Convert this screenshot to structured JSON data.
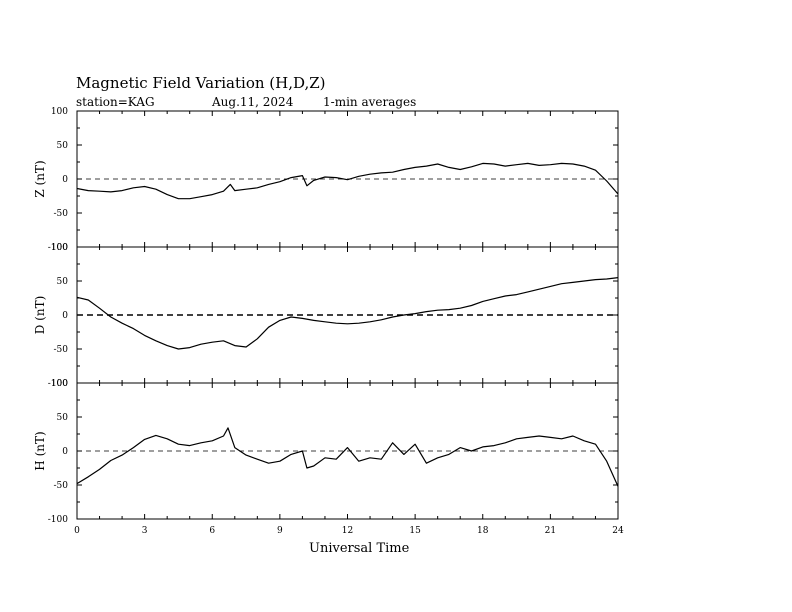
{
  "header": {
    "title": "Magnetic Field Variation (H,D,Z)",
    "station": "station=KAG",
    "date": "Aug.11, 2024",
    "averaging": "1-min averages"
  },
  "chart_data": {
    "type": "line",
    "xlabel": "Universal Time",
    "xlim": [
      0,
      24
    ],
    "xticks": [
      "0",
      "3",
      "6",
      "9",
      "12",
      "15",
      "18",
      "21",
      "24"
    ],
    "panels": [
      {
        "ylabel": "Z (nT)",
        "ylim": [
          -100,
          100
        ],
        "yticks": [
          "100",
          "50",
          "0",
          "-50",
          "-100"
        ],
        "zero_line": "dashed",
        "series": [
          {
            "x": [
              0,
              0.5,
              1,
              1.5,
              2,
              2.5,
              3,
              3.5,
              4,
              4.5,
              5,
              5.5,
              6,
              6.5,
              6.8,
              7,
              7.5,
              8,
              8.5,
              9,
              9.5,
              10,
              10.2,
              10.5,
              11,
              11.5,
              12,
              12.5,
              13,
              13.5,
              14,
              14.5,
              15,
              15.5,
              16,
              16.5,
              17,
              17.5,
              18,
              18.5,
              19,
              19.5,
              20,
              20.5,
              21,
              21.5,
              22,
              22.5,
              23,
              23.5,
              24
            ],
            "values": [
              -14,
              -17,
              -18,
              -19,
              -17,
              -13,
              -11,
              -15,
              -23,
              -29,
              -29,
              -26,
              -23,
              -18,
              -8,
              -17,
              -15,
              -13,
              -8,
              -4,
              2,
              5,
              -10,
              -2,
              3,
              2,
              -1,
              4,
              7,
              9,
              10,
              14,
              17,
              19,
              22,
              17,
              14,
              18,
              23,
              22,
              19,
              21,
              23,
              20,
              21,
              23,
              22,
              19,
              13,
              -3,
              -22
            ]
          }
        ]
      },
      {
        "ylabel": "D (nT)",
        "ylim": [
          -100,
          100
        ],
        "yticks": [
          "100",
          "50",
          "0",
          "-50",
          "-100"
        ],
        "zero_line": "dashed",
        "series": [
          {
            "x": [
              0,
              0.5,
              1,
              1.5,
              2,
              2.5,
              3,
              3.5,
              4,
              4.5,
              5,
              5.5,
              6,
              6.5,
              7,
              7.5,
              8,
              8.5,
              9,
              9.5,
              10,
              10.5,
              11,
              11.5,
              12,
              12.5,
              13,
              13.5,
              14,
              14.5,
              15,
              15.5,
              16,
              16.5,
              17,
              17.5,
              18,
              18.5,
              19,
              19.5,
              20,
              20.5,
              21,
              21.5,
              22,
              22.5,
              23,
              23.5,
              24
            ],
            "values": [
              26,
              22,
              10,
              -3,
              -12,
              -20,
              -30,
              -38,
              -45,
              -50,
              -48,
              -43,
              -40,
              -38,
              -45,
              -47,
              -35,
              -18,
              -8,
              -3,
              -5,
              -8,
              -10,
              -12,
              -13,
              -12,
              -10,
              -7,
              -3,
              0,
              2,
              5,
              7,
              8,
              10,
              14,
              20,
              24,
              28,
              30,
              34,
              38,
              42,
              46,
              48,
              50,
              52,
              53,
              55
            ]
          }
        ]
      },
      {
        "ylabel": "H (nT)",
        "ylim": [
          -100,
          100
        ],
        "yticks": [
          "100",
          "50",
          "0",
          "-50",
          "-100"
        ],
        "zero_line": "dashed",
        "series": [
          {
            "x": [
              0,
              0.5,
              1,
              1.5,
              2,
              2.5,
              3,
              3.5,
              4,
              4.5,
              5,
              5.5,
              6,
              6.5,
              6.7,
              7,
              7.5,
              8,
              8.5,
              9,
              9.5,
              10,
              10.2,
              10.5,
              11,
              11.5,
              12,
              12.5,
              13,
              13.5,
              14,
              14.5,
              15,
              15.5,
              16,
              16.5,
              17,
              17.5,
              18,
              18.5,
              19,
              19.5,
              20,
              20.5,
              21,
              21.5,
              22,
              22.5,
              23,
              23.5,
              24
            ],
            "values": [
              -48,
              -38,
              -27,
              -14,
              -6,
              5,
              17,
              23,
              18,
              10,
              8,
              12,
              15,
              22,
              34,
              5,
              -6,
              -12,
              -18,
              -15,
              -5,
              0,
              -25,
              -22,
              -10,
              -12,
              5,
              -15,
              -10,
              -12,
              12,
              -5,
              10,
              -18,
              -10,
              -5,
              5,
              0,
              6,
              8,
              12,
              18,
              20,
              22,
              20,
              18,
              22,
              15,
              10,
              -15,
              -52
            ]
          }
        ]
      }
    ]
  }
}
